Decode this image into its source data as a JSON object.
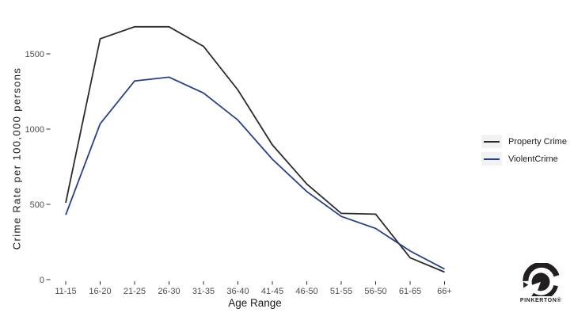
{
  "chart_data": {
    "type": "line",
    "title": "",
    "categories": [
      "11-15",
      "16-20",
      "21-25",
      "26-30",
      "31-35",
      "36-40",
      "41-45",
      "46-50",
      "51-55",
      "56-50",
      "61-65",
      "66+"
    ],
    "series": [
      {
        "name": "Property Crime",
        "color": "#2b2b2b",
        "values": [
          510,
          1600,
          1680,
          1680,
          1550,
          1260,
          895,
          635,
          440,
          435,
          145,
          50
        ]
      },
      {
        "name": "ViolentCrime",
        "color": "#27408b",
        "values": [
          430,
          1035,
          1320,
          1345,
          1240,
          1060,
          800,
          585,
          420,
          340,
          190,
          70
        ]
      }
    ],
    "xlabel": "Age Range",
    "ylabel": "Crime Rate per 100,000 persons",
    "y_ticks": [
      0,
      500,
      1000,
      1500
    ],
    "ylim": [
      0,
      1750
    ],
    "grid": false,
    "legend_position": "right",
    "axis_text_color": "#4d4d4d",
    "tick_mark_color": "#333333"
  },
  "icons": {
    "brand_logo": "pinkerton-eye-icon"
  },
  "branding": {
    "logo_text": "PINKERTON®",
    "logo_color": "#231f20"
  }
}
